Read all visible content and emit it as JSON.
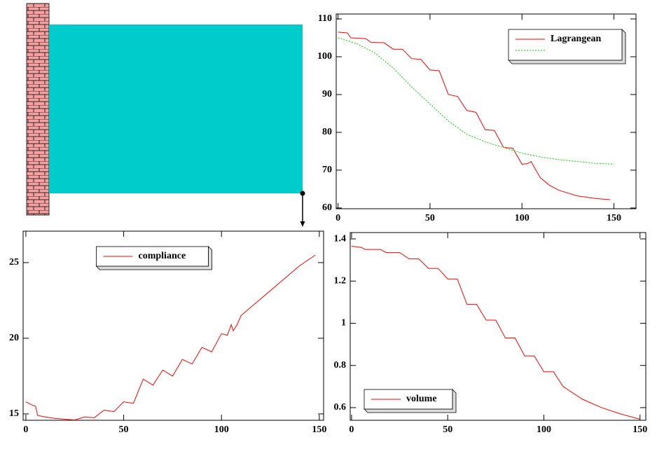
{
  "chart_data": [
    {
      "type": "line",
      "xlim": [
        -1,
        162
      ],
      "ylim": [
        59.8,
        111.3
      ],
      "xticks": [
        0,
        50,
        100,
        150
      ],
      "yticks": [
        60,
        70,
        80,
        90,
        100,
        110
      ],
      "legend": "upper right",
      "series": [
        {
          "name": "Lagrangean",
          "color": "#ff0000",
          "line_style": "solid",
          "x": [
            0,
            5,
            7,
            15,
            18,
            25,
            30,
            35,
            40,
            45,
            50,
            55,
            60,
            65,
            70,
            75,
            80,
            85,
            90,
            95,
            100,
            103,
            105,
            107,
            110,
            115,
            120,
            130,
            140,
            148
          ],
          "values": [
            106.5,
            106.3,
            105,
            104.8,
            103.8,
            103.7,
            102,
            102,
            99.5,
            99.3,
            96.5,
            96.3,
            90,
            89.5,
            85.8,
            85.3,
            80.7,
            80.5,
            76,
            75.8,
            71.6,
            71.7,
            72.3,
            70.5,
            68,
            66,
            64.7,
            63.2,
            62.5,
            62.2
          ]
        },
        {
          "color": "#00cc00",
          "line_style": "dotted",
          "x": [
            0,
            10,
            20,
            30,
            40,
            50,
            60,
            70,
            80,
            90,
            100,
            110,
            120,
            130,
            140,
            150
          ],
          "values": [
            105,
            103.5,
            101,
            97,
            92,
            87.5,
            83,
            79.5,
            77.5,
            76,
            74.5,
            73.5,
            72.8,
            72.3,
            71.8,
            71.6
          ]
        }
      ]
    },
    {
      "type": "line",
      "xlim": [
        -1.4,
        152.2
      ],
      "ylim": [
        14.58,
        27.08
      ],
      "xticks": [
        0,
        50,
        100,
        150
      ],
      "yticks": [
        15,
        20,
        25
      ],
      "legend": "upper center",
      "series": [
        {
          "name": "compliance",
          "color": "#ff0000",
          "line_style": "solid",
          "x": [
            0,
            3,
            5,
            6,
            10,
            15,
            20,
            25,
            30,
            35,
            40,
            45,
            50,
            55,
            60,
            65,
            70,
            75,
            80,
            85,
            90,
            95,
            100,
            103,
            105,
            106,
            108,
            110,
            120,
            130,
            140,
            148
          ],
          "values": [
            15.8,
            15.6,
            15.5,
            14.9,
            14.8,
            14.7,
            14.65,
            14.6,
            14.8,
            14.75,
            15.25,
            15.15,
            15.8,
            15.7,
            17.3,
            16.9,
            17.9,
            17.5,
            18.6,
            18.3,
            19.4,
            19.1,
            20.3,
            20.2,
            20.9,
            20.5,
            20.9,
            21.5,
            22.6,
            23.7,
            24.8,
            25.5
          ]
        }
      ]
    },
    {
      "type": "line",
      "xlim": [
        -0.7,
        153
      ],
      "ylim": [
        0.54,
        1.43
      ],
      "xticks": [
        0,
        50,
        100,
        150
      ],
      "yticks": [
        0.6,
        0.8,
        1,
        1.2,
        1.4
      ],
      "legend": "lower left",
      "series": [
        {
          "name": "volume",
          "color": "#ff0000",
          "line_style": "solid",
          "x": [
            0,
            5,
            7,
            15,
            18,
            25,
            30,
            35,
            40,
            45,
            50,
            55,
            60,
            65,
            70,
            75,
            80,
            85,
            90,
            95,
            100,
            105,
            110,
            120,
            130,
            140,
            150
          ],
          "values": [
            1.365,
            1.36,
            1.35,
            1.35,
            1.335,
            1.335,
            1.305,
            1.305,
            1.26,
            1.26,
            1.21,
            1.21,
            1.09,
            1.09,
            1.015,
            1.015,
            0.93,
            0.93,
            0.845,
            0.845,
            0.77,
            0.77,
            0.7,
            0.64,
            0.6,
            0.57,
            0.545
          ]
        }
      ]
    }
  ]
}
